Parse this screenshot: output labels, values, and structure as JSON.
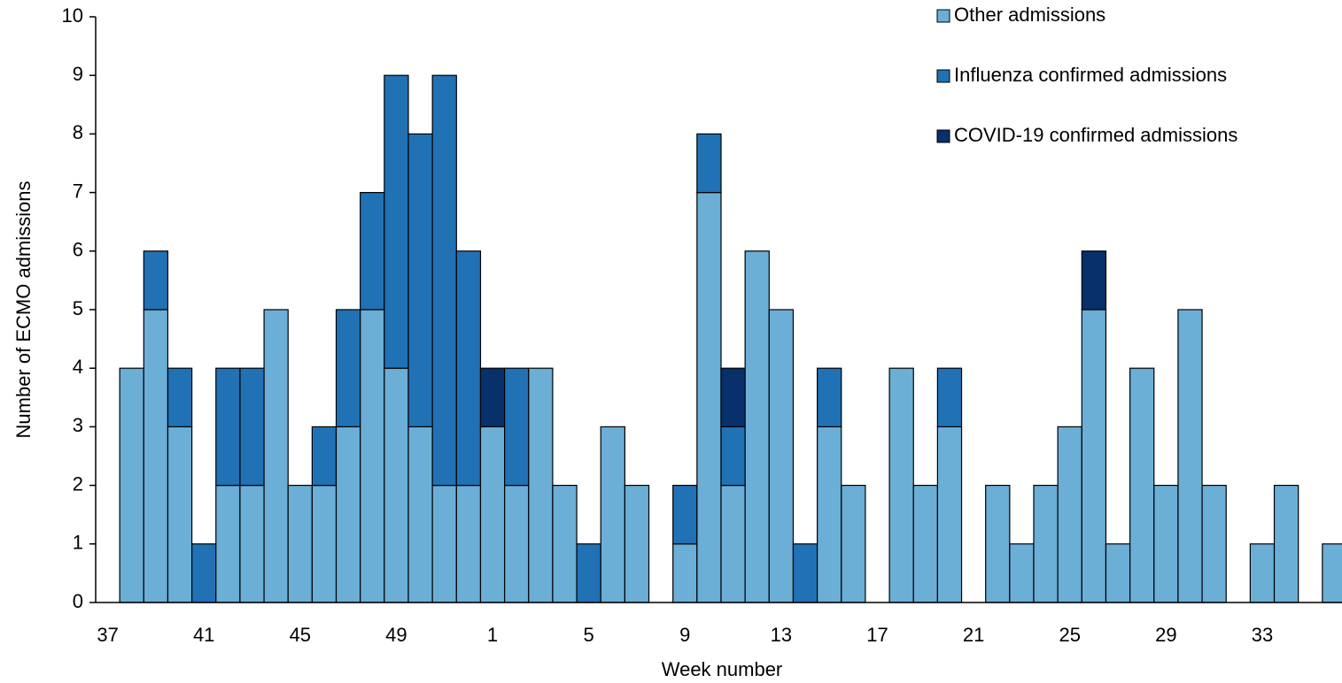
{
  "chart_data": {
    "type": "stacked_bar",
    "x_label": "Week number",
    "y_label": "Number of ECMO admissions",
    "categories": [
      "37",
      null,
      null,
      null,
      "41",
      null,
      null,
      null,
      "45",
      null,
      null,
      null,
      "49",
      null,
      null,
      null,
      "1",
      null,
      null,
      null,
      "5",
      null,
      null,
      null,
      "9",
      null,
      null,
      null,
      "13",
      null,
      null,
      null,
      "17",
      null,
      null,
      null,
      "21",
      null,
      null,
      null,
      "25",
      null,
      null,
      null,
      "29",
      null,
      null,
      null,
      "33",
      null,
      null,
      null
    ],
    "series": [
      {
        "name": "Other admissions",
        "color": "#6baed6",
        "values": [
          0,
          4,
          5,
          3,
          0,
          2,
          2,
          5,
          2,
          2,
          3,
          5,
          4,
          3,
          2,
          2,
          3,
          2,
          4,
          2,
          0,
          3,
          2,
          0,
          1,
          7,
          2,
          6,
          5,
          0,
          3,
          2,
          0,
          4,
          2,
          3,
          0,
          2,
          1,
          2,
          3,
          5,
          1,
          4,
          2,
          5,
          2,
          0,
          1,
          2,
          0,
          1
        ]
      },
      {
        "name": "Influenza confirmed admissions",
        "color": "#2171b5",
        "values": [
          0,
          0,
          1,
          1,
          1,
          2,
          2,
          0,
          0,
          1,
          2,
          2,
          5,
          5,
          7,
          4,
          0,
          2,
          0,
          0,
          1,
          0,
          0,
          0,
          1,
          1,
          1,
          0,
          0,
          1,
          1,
          0,
          0,
          0,
          0,
          1,
          0,
          0,
          0,
          0,
          0,
          0,
          0,
          0,
          0,
          0,
          0,
          0,
          0,
          0,
          0,
          0
        ]
      },
      {
        "name": "COVID-19 confirmed admissions",
        "color": "#08306b",
        "values": [
          0,
          0,
          0,
          0,
          0,
          0,
          0,
          0,
          0,
          0,
          0,
          0,
          0,
          0,
          0,
          0,
          1,
          0,
          0,
          0,
          0,
          0,
          0,
          0,
          0,
          0,
          1,
          0,
          0,
          0,
          0,
          0,
          0,
          0,
          0,
          0,
          0,
          0,
          0,
          0,
          0,
          1,
          0,
          0,
          0,
          0,
          0,
          0,
          0,
          0,
          0,
          0
        ]
      }
    ],
    "ylim": [
      0,
      10
    ],
    "yticks": [
      0,
      1,
      2,
      3,
      4,
      5,
      6,
      7,
      8,
      9,
      10
    ],
    "grid": false,
    "legend": "top-right"
  }
}
